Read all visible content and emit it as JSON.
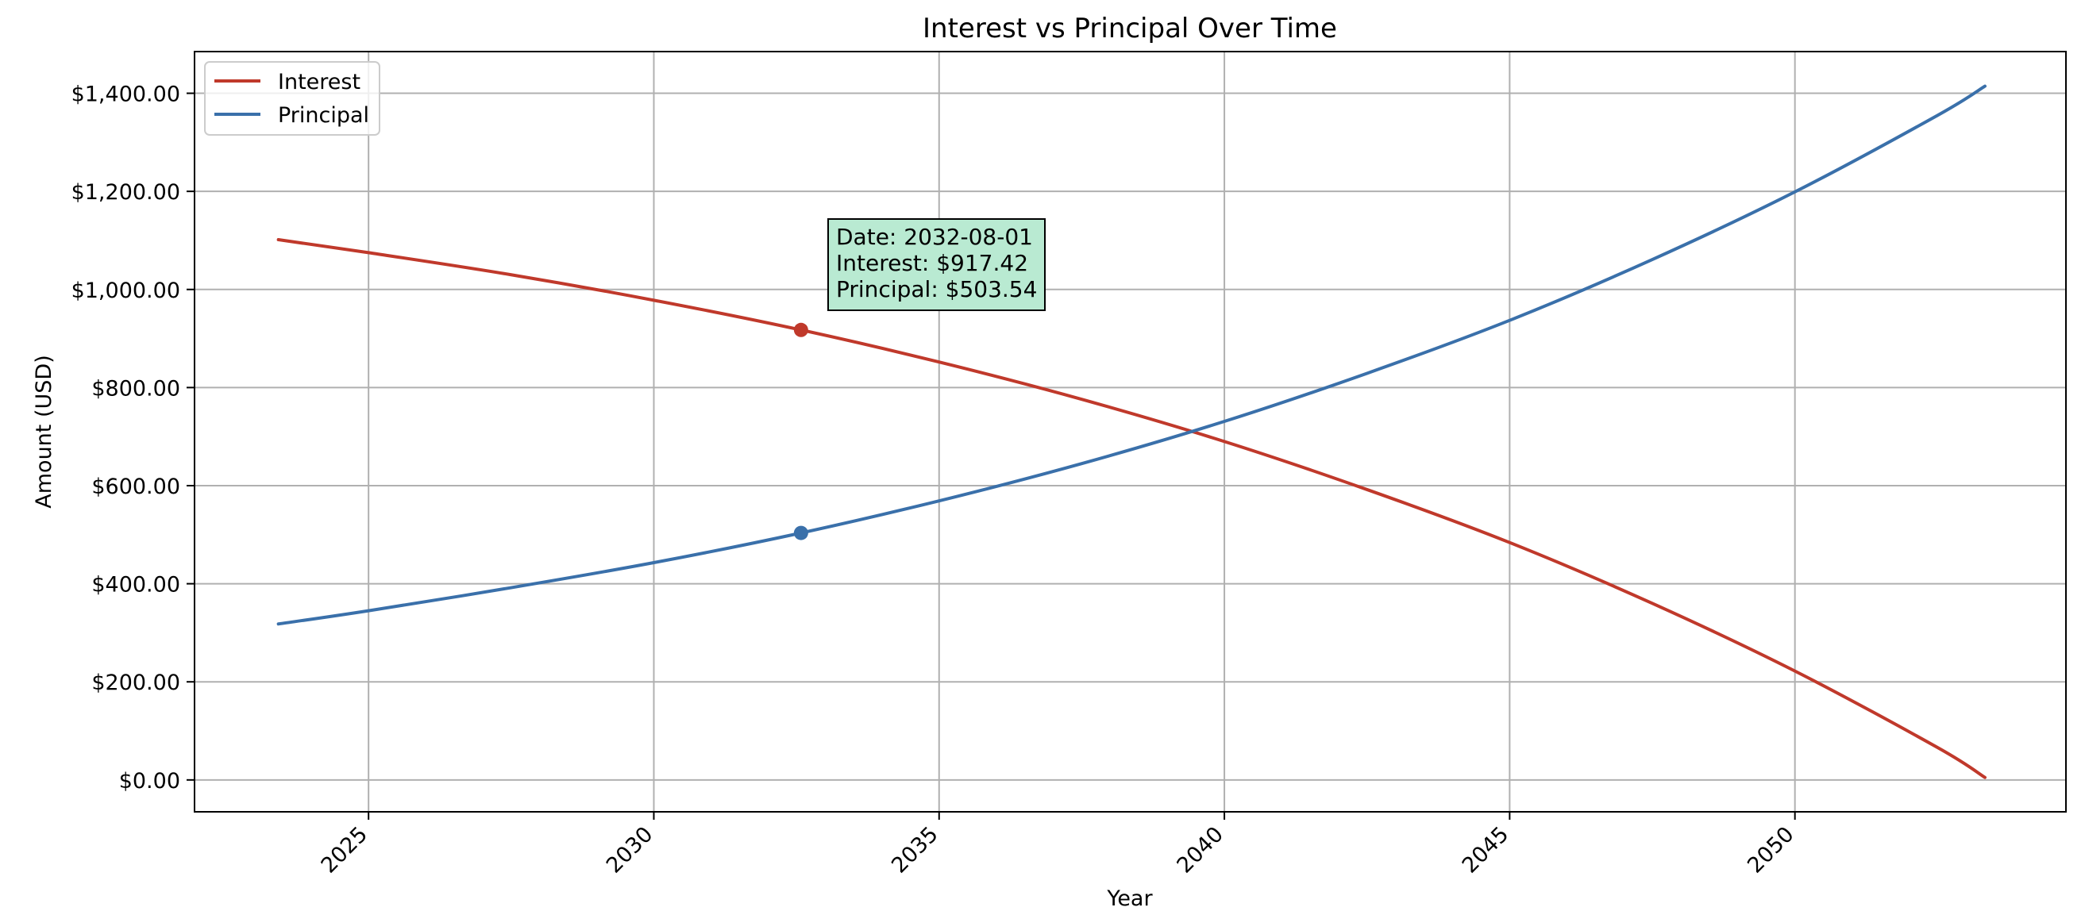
{
  "chart_data": {
    "type": "line",
    "title": "Interest vs Principal Over Time",
    "xlabel": "Year",
    "ylabel": "Amount (USD)",
    "xlim": [
      2021.95,
      2054.75
    ],
    "ylim": [
      -65,
      1485
    ],
    "x_ticks": [
      2025,
      2030,
      2035,
      2040,
      2045,
      2050
    ],
    "x_tick_labels": [
      "2025",
      "2030",
      "2035",
      "2040",
      "2045",
      "2050"
    ],
    "y_ticks": [
      0,
      200,
      400,
      600,
      800,
      1000,
      1200,
      1400
    ],
    "y_tick_labels": [
      "$0.00",
      "$200.00",
      "$400.00",
      "$600.00",
      "$800.00",
      "$1,000.00",
      "$1,200.00",
      "$1,400.00"
    ],
    "grid": true,
    "legend_position": "top-left",
    "series": [
      {
        "name": "Interest",
        "color": "#c0392b",
        "x": [
          2023.42,
          2025.0,
          2027.5,
          2030.0,
          2032.58,
          2035.0,
          2037.5,
          2040.0,
          2042.5,
          2045.0,
          2047.5,
          2050.0,
          2052.5,
          2053.33
        ],
        "y": [
          1101.5,
          1075,
          1030,
          978,
          917.42,
          852,
          776,
          690,
          592,
          484,
          360,
          222,
          66,
          5
        ]
      },
      {
        "name": "Principal",
        "color": "#3a70aa",
        "x": [
          2023.42,
          2025.0,
          2027.5,
          2030.0,
          2032.58,
          2035.0,
          2037.5,
          2040.0,
          2042.5,
          2045.0,
          2047.5,
          2050.0,
          2052.5,
          2053.33
        ],
        "y": [
          318,
          345,
          392,
          443,
          503.54,
          569,
          645,
          731,
          829,
          937,
          1061,
          1199,
          1355,
          1414.5
        ]
      }
    ],
    "highlight": {
      "x": 2032.58,
      "interest": 917.42,
      "principal": 503.54,
      "lines": [
        "Date: 2032-08-01",
        "Interest: $917.42",
        "Principal: $503.54"
      ],
      "box_color": "#b9ead2"
    }
  }
}
